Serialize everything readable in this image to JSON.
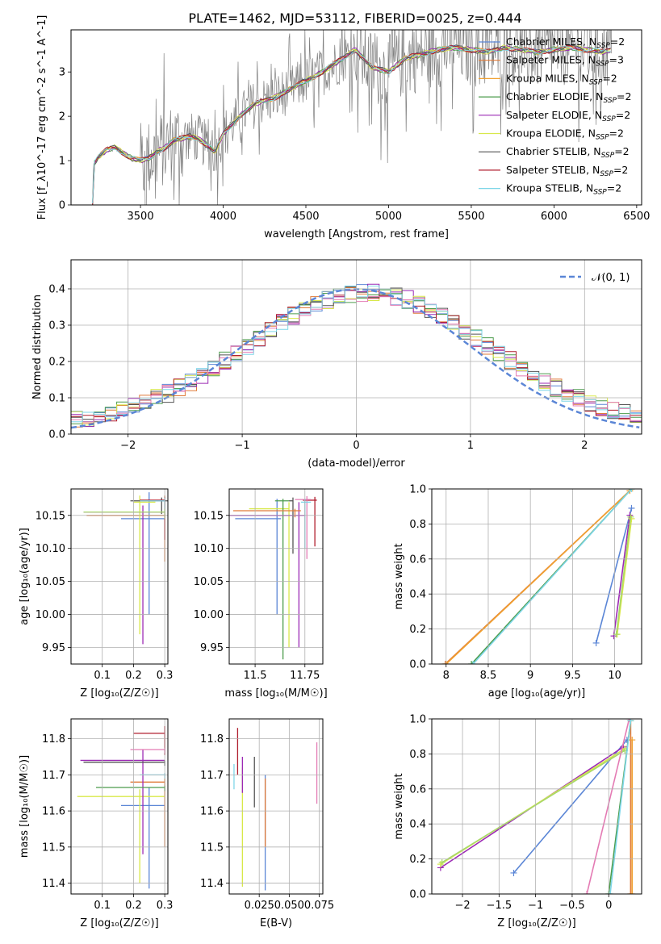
{
  "title": "PLATE=1462, MJD=53112, FIBERID=0025, z=0.444",
  "colors": {
    "Chabrier MILES": "#5b86d6",
    "Salpeter MILES": "#e07b39",
    "Kroupa MILES": "#f0a030",
    "Chabrier ELODIE": "#4c9c4c",
    "Salpeter ELODIE": "#9c2ab5",
    "Kroupa ELODIE": "#d8e84a",
    "Chabrier STELIB": "#555555",
    "Salpeter STELIB": "#b01e2e",
    "Kroupa STELIB": "#7fd6e8",
    "pink": "#e47bb4",
    "lightgreen": "#a8d86a",
    "data": "#808080"
  },
  "chart_data": [
    {
      "id": "spectrum",
      "type": "line",
      "xlabel": "wavelength [Angstrom, rest frame]",
      "ylabel": "Flux [f_λ10^-17 erg cm^-2 s^-1 A^-1]",
      "xlim": [
        3080,
        6530
      ],
      "ylim": [
        0,
        3.95
      ],
      "xticks": [
        3500,
        4000,
        4500,
        5000,
        5500,
        6000,
        6500
      ],
      "yticks": [
        0,
        1,
        2,
        3
      ],
      "grid": false,
      "legend_position": "top-right",
      "legend": [
        {
          "label": "Chabrier MILES, N",
          "sub": "SSP",
          "suffix": "=2",
          "color": "#5b86d6"
        },
        {
          "label": "Salpeter MILES, N",
          "sub": "SSP",
          "suffix": "=3",
          "color": "#e07b39"
        },
        {
          "label": "Kroupa MILES, N",
          "sub": "SSP",
          "suffix": "=2",
          "color": "#f0a030"
        },
        {
          "label": "Chabrier ELODIE, N",
          "sub": "SSP",
          "suffix": "=2",
          "color": "#4c9c4c"
        },
        {
          "label": "Salpeter ELODIE, N",
          "sub": "SSP",
          "suffix": "=2",
          "color": "#9c2ab5"
        },
        {
          "label": "Kroupa ELODIE, N",
          "sub": "SSP",
          "suffix": "=2",
          "color": "#d8e84a"
        },
        {
          "label": "Chabrier STELIB, N",
          "sub": "SSP",
          "suffix": "=2",
          "color": "#555555"
        },
        {
          "label": "Salpeter STELIB, N",
          "sub": "SSP",
          "suffix": "=2",
          "color": "#b01e2e"
        },
        {
          "label": "Kroupa STELIB, N",
          "sub": "SSP",
          "suffix": "=2",
          "color": "#7fd6e8"
        }
      ],
      "model_points": [
        [
          3210,
          0.0
        ],
        [
          3215,
          0.9
        ],
        [
          3250,
          1.1
        ],
        [
          3300,
          1.25
        ],
        [
          3350,
          1.3
        ],
        [
          3400,
          1.15
        ],
        [
          3450,
          1.05
        ],
        [
          3500,
          1.0
        ],
        [
          3550,
          1.05
        ],
        [
          3600,
          1.2
        ],
        [
          3650,
          1.3
        ],
        [
          3700,
          1.45
        ],
        [
          3750,
          1.5
        ],
        [
          3800,
          1.55
        ],
        [
          3850,
          1.5
        ],
        [
          3900,
          1.35
        ],
        [
          3950,
          1.2
        ],
        [
          4000,
          1.6
        ],
        [
          4100,
          2.0
        ],
        [
          4200,
          2.3
        ],
        [
          4300,
          2.4
        ],
        [
          4400,
          2.6
        ],
        [
          4500,
          2.8
        ],
        [
          4600,
          3.0
        ],
        [
          4700,
          3.25
        ],
        [
          4800,
          3.5
        ],
        [
          4850,
          3.3
        ],
        [
          4900,
          3.1
        ],
        [
          5000,
          3.0
        ],
        [
          5100,
          3.3
        ],
        [
          5200,
          3.4
        ],
        [
          5300,
          3.5
        ],
        [
          5400,
          3.55
        ],
        [
          5500,
          3.5
        ],
        [
          5600,
          3.45
        ],
        [
          5700,
          3.55
        ],
        [
          5800,
          3.5
        ],
        [
          5900,
          3.45
        ],
        [
          6000,
          3.5
        ],
        [
          6100,
          3.55
        ],
        [
          6200,
          3.5
        ],
        [
          6300,
          3.45
        ],
        [
          6350,
          3.5
        ]
      ]
    },
    {
      "id": "residuals",
      "type": "line",
      "xlabel": "(data-model)/error",
      "ylabel": "Normed distribution",
      "xlim": [
        -2.5,
        2.5
      ],
      "ylim": [
        0,
        0.48
      ],
      "xticks": [
        -2,
        -1,
        0,
        1,
        2
      ],
      "yticks": [
        0.0,
        0.1,
        0.2,
        0.3,
        0.4
      ],
      "grid": true,
      "legend_position": "top-right",
      "legend": [
        {
          "label": "𝒩(0, 1)",
          "color": "#5b86d6",
          "dashed": true
        }
      ],
      "gaussian": {
        "mean": 0,
        "sigma": 1
      }
    },
    {
      "id": "age_vs_Z",
      "type": "scatter",
      "xlabel": "Z [log₁₀(Z/Z☉)]",
      "ylabel": "age  [log₁₀(age/yr)]",
      "xlim": [
        0.0,
        0.31
      ],
      "ylim": [
        9.925,
        10.19
      ],
      "xticks": [
        0.1,
        0.2,
        0.3
      ],
      "yticks": [
        9.95,
        10.0,
        10.05,
        10.1,
        10.15
      ],
      "grid": true,
      "points": [
        {
          "x": 0.25,
          "y": 10.145,
          "xerr": [
            0.09,
            0.05
          ],
          "yerr": [
            0.145,
            0.04
          ],
          "color": "#5b86d6"
        },
        {
          "x": 0.3,
          "y": 10.15,
          "xerr": [
            0.25,
            0.0
          ],
          "yerr": [
            0.07,
            0.03
          ],
          "color": "#e07b39"
        },
        {
          "x": 0.22,
          "y": 10.17,
          "xerr": [
            0.02,
            0.05
          ],
          "yerr": [
            0.2,
            0.01
          ],
          "color": "#d8e84a"
        },
        {
          "x": 0.23,
          "y": 10.155,
          "xerr": [
            0.19,
            0.07
          ],
          "yerr": [
            0.2,
            0.01
          ],
          "color": "#9c2ab5"
        },
        {
          "x": 0.29,
          "y": 10.172,
          "xerr": [
            0.1,
            0.02
          ],
          "yerr": [
            0.02,
            0.005
          ],
          "color": "#555555"
        },
        {
          "x": 0.3,
          "y": 10.173,
          "xerr": [
            0.08,
            0.0
          ],
          "yerr": [
            0.06,
            0.005
          ],
          "color": "#b01e2e"
        },
        {
          "x": 0.3,
          "y": 10.172,
          "xerr": [
            0.08,
            0.0
          ],
          "yerr": [
            0.02,
            0.005
          ],
          "color": "#7fd6e8"
        },
        {
          "x": 0.3,
          "y": 10.155,
          "xerr": [
            0.26,
            0.0
          ],
          "yerr": [
            0.01,
            0.005
          ],
          "color": "#a8d86a"
        }
      ]
    },
    {
      "id": "age_vs_mass",
      "type": "scatter",
      "xlabel": "mass [log₁₀(M/M☉)]",
      "ylabel": "",
      "xlim": [
        11.37,
        11.84
      ],
      "ylim": [
        9.925,
        10.19
      ],
      "xticks": [
        11.5,
        11.75
      ],
      "yticks": [
        9.95,
        10.0,
        10.05,
        10.1,
        10.15
      ],
      "grid": true,
      "points": [
        {
          "x": 11.61,
          "y": 10.145,
          "xerr": [
            0.21,
            0.02
          ],
          "yerr": [
            0.145,
            0.03
          ],
          "color": "#5b86d6"
        },
        {
          "x": 11.67,
          "y": 10.16,
          "xerr": [
            0.2,
            0.0
          ],
          "yerr": [
            0.21,
            0.01
          ],
          "color": "#d8e84a"
        },
        {
          "x": 11.64,
          "y": 10.172,
          "xerr": [
            0.04,
            0.03
          ],
          "yerr": [
            0.24,
            0.003
          ],
          "color": "#4c9c4c"
        },
        {
          "x": 11.72,
          "y": 10.15,
          "xerr": [
            0.35,
            0.03
          ],
          "yerr": [
            0.2,
            0.02
          ],
          "color": "#9c2ab5"
        },
        {
          "x": 11.69,
          "y": 10.172,
          "xerr": [
            0.02,
            0.0
          ],
          "yerr": [
            0.08,
            0.005
          ],
          "color": "#555555"
        },
        {
          "x": 11.8,
          "y": 10.173,
          "xerr": [
            0.06,
            0.01
          ],
          "yerr": [
            0.07,
            0.005
          ],
          "color": "#b01e2e"
        },
        {
          "x": 11.76,
          "y": 10.174,
          "xerr": [
            0.06,
            0.02
          ],
          "yerr": [
            0.09,
            0.005
          ],
          "color": "#e47bb4"
        },
        {
          "x": 11.75,
          "y": 10.17,
          "xerr": [
            0.02,
            0.03
          ],
          "yerr": [
            0.07,
            0.005
          ],
          "color": "#7fd6e8"
        },
        {
          "x": 11.7,
          "y": 10.157,
          "xerr": [
            0.31,
            0.03
          ],
          "yerr": [
            0.01,
            0.003
          ],
          "color": "#e07b39"
        }
      ]
    },
    {
      "id": "weight_vs_age",
      "type": "line",
      "xlabel": "age  [log₁₀(age/yr)]",
      "ylabel": "mass weight",
      "xlim": [
        7.83,
        10.32
      ],
      "ylim": [
        0,
        1.0
      ],
      "xticks": [
        8.0,
        8.5,
        9.0,
        9.5,
        10.0
      ],
      "yticks": [
        0.0,
        0.2,
        0.4,
        0.6,
        0.8,
        1.0
      ],
      "grid": true,
      "series": [
        {
          "color": "#5b86d6",
          "x": [
            9.78,
            10.2
          ],
          "y": [
            0.12,
            0.89
          ]
        },
        {
          "color": "#e07b39",
          "x": [
            7.99,
            10.18
          ],
          "y": [
            0.0,
            0.99
          ]
        },
        {
          "color": "#f0a030",
          "x": [
            8.0,
            10.18
          ],
          "y": [
            0.0,
            0.99
          ]
        },
        {
          "color": "#9c2ab5",
          "x": [
            9.99,
            10.18
          ],
          "y": [
            0.16,
            0.85
          ]
        },
        {
          "color": "#d8e84a",
          "x": [
            10.03,
            10.2
          ],
          "y": [
            0.17,
            0.83
          ]
        },
        {
          "color": "#a8d86a",
          "x": [
            10.02,
            10.19
          ],
          "y": [
            0.17,
            0.84
          ]
        },
        {
          "color": "#4c9c4c",
          "x": [
            8.3,
            10.2
          ],
          "y": [
            0.0,
            1.0
          ]
        },
        {
          "color": "#7fd6e8",
          "x": [
            8.32,
            10.2
          ],
          "y": [
            0.0,
            1.0
          ]
        }
      ]
    },
    {
      "id": "mass_vs_Z",
      "type": "scatter",
      "xlabel": "Z [log₁₀(Z/Z☉)]",
      "ylabel": "mass [log₁₀(M/M☉)]",
      "xlim": [
        0.0,
        0.31
      ],
      "ylim": [
        11.37,
        11.855
      ],
      "xticks": [
        0.1,
        0.2,
        0.3
      ],
      "yticks": [
        11.4,
        11.5,
        11.6,
        11.7,
        11.8
      ],
      "grid": true,
      "points": [
        {
          "x": 0.25,
          "y": 11.615,
          "xerr": [
            0.09,
            0.05
          ],
          "yerr": [
            0.23,
            0.05
          ],
          "color": "#5b86d6"
        },
        {
          "x": 0.3,
          "y": 11.68,
          "xerr": [
            0.11,
            0.0
          ],
          "yerr": [
            0.18,
            0.01
          ],
          "color": "#e07b39"
        },
        {
          "x": 0.22,
          "y": 11.64,
          "xerr": [
            0.2,
            0.08
          ],
          "yerr": [
            0.24,
            0.02
          ],
          "color": "#d8e84a"
        },
        {
          "x": 0.23,
          "y": 11.74,
          "xerr": [
            0.2,
            0.07
          ],
          "yerr": [
            0.26,
            0.03
          ],
          "color": "#9c2ab5"
        },
        {
          "x": 0.3,
          "y": 11.665,
          "xerr": [
            0.22,
            0.0
          ],
          "yerr": [
            0.01,
            0.005
          ],
          "color": "#4c9c4c"
        },
        {
          "x": 0.3,
          "y": 11.735,
          "xerr": [
            0.26,
            0.0
          ],
          "yerr": [
            0.01,
            0.005
          ],
          "color": "#555555"
        },
        {
          "x": 0.3,
          "y": 11.815,
          "xerr": [
            0.1,
            0.0
          ],
          "yerr": [
            0.06,
            0.02
          ],
          "color": "#b01e2e"
        },
        {
          "x": 0.3,
          "y": 11.77,
          "xerr": [
            0.11,
            0.0
          ],
          "yerr": [
            0.01,
            0.005
          ],
          "color": "#e47bb4"
        },
        {
          "x": 0.3,
          "y": 11.7,
          "xerr": [
            0.08,
            0.0
          ],
          "yerr": [
            0.01,
            0.005
          ],
          "color": "#7fd6e8"
        }
      ]
    },
    {
      "id": "mass_vs_ebv",
      "type": "scatter",
      "xlabel": "E(B-V)",
      "ylabel": "",
      "xlim": [
        0.0,
        0.078
      ],
      "ylim": [
        11.37,
        11.855
      ],
      "xticks": [
        0.025,
        0.05,
        0.075
      ],
      "xticklabels": [
        "0.025",
        "0.050",
        "0.075"
      ],
      "yticks": [
        11.4,
        11.5,
        11.6,
        11.7,
        11.8
      ],
      "grid": true,
      "points": [
        {
          "x": 0.03,
          "y": 11.6,
          "yerr": [
            0.22,
            0.1
          ],
          "color": "#5b86d6"
        },
        {
          "x": 0.03,
          "y": 11.62,
          "yerr": [
            0.12,
            0.07
          ],
          "color": "#e07b39"
        },
        {
          "x": 0.011,
          "y": 11.6,
          "yerr": [
            0.21,
            0.12
          ],
          "color": "#d8e84a"
        },
        {
          "x": 0.011,
          "y": 11.7,
          "yerr": [
            0.05,
            0.05
          ],
          "color": "#9c2ab5"
        },
        {
          "x": 0.021,
          "y": 11.68,
          "yerr": [
            0.07,
            0.07
          ],
          "color": "#555555"
        },
        {
          "x": 0.007,
          "y": 11.76,
          "yerr": [
            0.06,
            0.07
          ],
          "color": "#b01e2e"
        },
        {
          "x": 0.073,
          "y": 11.7,
          "yerr": [
            0.08,
            0.09
          ],
          "color": "#e47bb4"
        },
        {
          "x": 0.004,
          "y": 11.7,
          "yerr": [
            0.04,
            0.03
          ],
          "color": "#7fd6e8"
        }
      ]
    },
    {
      "id": "weight_vs_Z",
      "type": "line",
      "xlabel": "Z [log₁₀(Z/Z☉)]",
      "ylabel": "mass weight",
      "xlim": [
        -2.42,
        0.45
      ],
      "ylim": [
        0,
        1.0
      ],
      "xticks": [
        -2.0,
        -1.5,
        -1.0,
        -0.5,
        0.0
      ],
      "yticks": [
        0.0,
        0.2,
        0.4,
        0.6,
        0.8,
        1.0
      ],
      "grid": true,
      "series": [
        {
          "color": "#5b86d6",
          "x": [
            -1.3,
            0.25
          ],
          "y": [
            0.12,
            0.88
          ]
        },
        {
          "color": "#e07b39",
          "x": [
            0.3,
            0.3
          ],
          "y": [
            0.0,
            0.99
          ]
        },
        {
          "color": "#f0a030",
          "x": [
            0.32,
            0.32
          ],
          "y": [
            0.0,
            0.88
          ]
        },
        {
          "color": "#9c2ab5",
          "x": [
            -2.3,
            0.2
          ],
          "y": [
            0.15,
            0.84
          ]
        },
        {
          "color": "#d8e84a",
          "x": [
            -2.3,
            0.22
          ],
          "y": [
            0.17,
            0.83
          ]
        },
        {
          "color": "#a8d86a",
          "x": [
            -2.28,
            0.22
          ],
          "y": [
            0.18,
            0.82
          ]
        },
        {
          "color": "#e47bb4",
          "x": [
            -0.3,
            0.28
          ],
          "y": [
            0.0,
            1.0
          ]
        },
        {
          "color": "#4c9c4c",
          "x": [
            0.0,
            0.3
          ],
          "y": [
            0.0,
            0.99
          ]
        },
        {
          "color": "#7fd6e8",
          "x": [
            0.02,
            0.3
          ],
          "y": [
            0.0,
            0.99
          ]
        }
      ]
    }
  ]
}
